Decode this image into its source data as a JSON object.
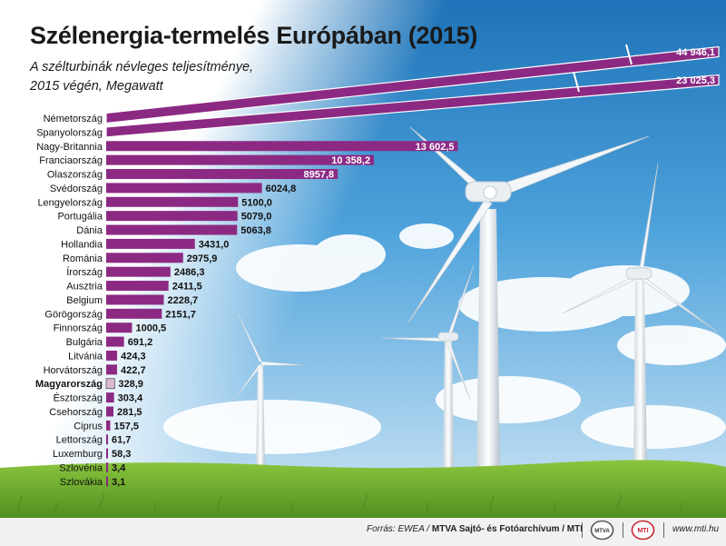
{
  "header": {
    "title": "Szélenergia-termelés Európában (2015)",
    "subtitle_line1": "A szélturbinák névleges teljesítménye,",
    "subtitle_line2": "2015 végén, Megawatt"
  },
  "footer": {
    "source_label": "Forrás: EWEA / ",
    "source_credit": "MTVA Sajtó- és Fotóarchívum / MTI",
    "logo1_text": "MTVA",
    "logo2_text": "MTI",
    "website": "www.mti.hu"
  },
  "colors": {
    "bar": "#8c2a83",
    "highlight": "#d9b9d4",
    "label_text": "#111111",
    "sky_top": "#2d86c6",
    "grass": "#6fae2c"
  },
  "chart_data": {
    "type": "bar",
    "orientation": "horizontal",
    "title": "Szélenergia-termelés Európában (2015)",
    "ylabel": "A szélturbinák névleges teljesítménye, 2015 végén, Megawatt",
    "highlight": "Magyarország",
    "categories": [
      "Németország",
      "Spanyolország",
      "Nagy-Britannia",
      "Franciaország",
      "Olaszország",
      "Svédország",
      "Lengyelország",
      "Portugália",
      "Dánia",
      "Hollandia",
      "Románia",
      "Írország",
      "Ausztria",
      "Belgium",
      "Görögország",
      "Finnország",
      "Bulgária",
      "Litvánia",
      "Horvátország",
      "Magyarország",
      "Észtország",
      "Csehország",
      "Ciprus",
      "Lettország",
      "Luxemburg",
      "Szlovénia",
      "Szlovákia"
    ],
    "values": [
      44946.1,
      23025.3,
      13602.5,
      10358.2,
      8957.8,
      6024.8,
      5100.0,
      5079.0,
      5063.8,
      3431.0,
      2975.9,
      2486.3,
      2411.5,
      2228.7,
      2151.7,
      1000.5,
      691.2,
      424.3,
      422.7,
      328.9,
      303.4,
      281.5,
      157.5,
      61.7,
      58.3,
      3.4,
      3.1
    ],
    "value_labels": [
      "44 946,1",
      "23 025,3",
      "13 602,5",
      "10 358,2",
      "8957,8",
      "6024,8",
      "5100,0",
      "5079,0",
      "5063,8",
      "3431,0",
      "2975,9",
      "2486,3",
      "2411,5",
      "2228,7",
      "2151,7",
      "1000,5",
      "691,2",
      "424,3",
      "422,7",
      "328,9",
      "303,4",
      "281,5",
      "157,5",
      "61,7",
      "58,3",
      "3,4",
      "3,1"
    ]
  }
}
